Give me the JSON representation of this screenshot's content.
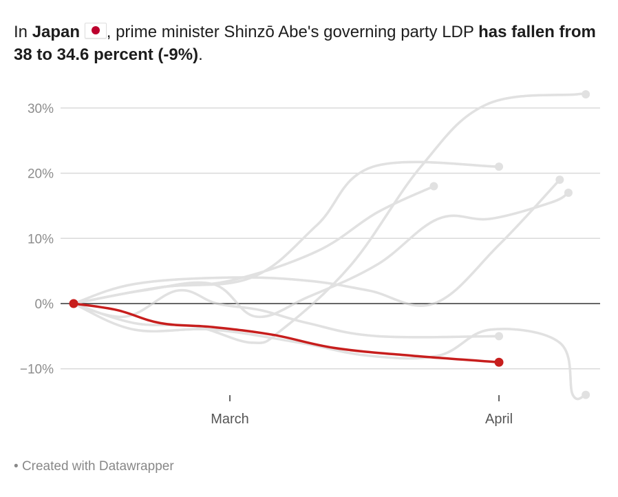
{
  "headline": {
    "part1": "In ",
    "country": "Japan",
    "flag_icon": "japan-flag-icon",
    "part2": ", prime minister Shinzō Abe's governing party LDP ",
    "bold_tail": "has fallen from 38 to 34.6 percent (-9%)",
    "end": "."
  },
  "footer": {
    "bullet": "•",
    "text": "Created with Datawrapper"
  },
  "chart_data": {
    "type": "line",
    "title": "In Japan, prime minister Shinzō Abe's governing party LDP has fallen from 38 to 34.6 percent (-9%).",
    "xlabel": "",
    "ylabel": "",
    "x_unit": "days since first poll",
    "x_ticks": [
      {
        "label": "March",
        "x": 18
      },
      {
        "label": "April",
        "x": 49
      }
    ],
    "y_ticks": [
      {
        "label": "30%",
        "value": 30
      },
      {
        "label": "20%",
        "value": 20
      },
      {
        "label": "10%",
        "value": 10
      },
      {
        "label": "0%",
        "value": 0
      },
      {
        "label": "−10%",
        "value": -10
      }
    ],
    "xlim": [
      0,
      60
    ],
    "ylim": [
      -15,
      33
    ],
    "grid": true,
    "baseline": 0,
    "colors": {
      "highlight": "#c71e1d",
      "context": "#e1e1e1",
      "grid": "#d9d9d9",
      "baseline": "#333333"
    },
    "series": [
      {
        "name": "context-a",
        "highlight": false,
        "points": [
          [
            0,
            0
          ],
          [
            7,
            -3
          ],
          [
            14,
            -3.5
          ],
          [
            20.5,
            -6
          ],
          [
            24,
            -4
          ],
          [
            32,
            6
          ],
          [
            40,
            21
          ],
          [
            47.5,
            30.5
          ],
          [
            58,
            32.1
          ],
          [
            59,
            32.1
          ]
        ]
      },
      {
        "name": "context-b",
        "highlight": false,
        "points": [
          [
            0,
            0
          ],
          [
            10,
            2.5
          ],
          [
            20.5,
            4
          ],
          [
            28,
            12
          ],
          [
            34.5,
            21
          ],
          [
            49,
            21
          ]
        ]
      },
      {
        "name": "context-c",
        "highlight": false,
        "points": [
          [
            0,
            0
          ],
          [
            10,
            2.5
          ],
          [
            18,
            3.5
          ],
          [
            28,
            8
          ],
          [
            35,
            14
          ],
          [
            41.5,
            18
          ]
        ]
      },
      {
        "name": "context-d",
        "highlight": false,
        "points": [
          [
            0,
            0
          ],
          [
            7,
            3
          ],
          [
            18,
            4
          ],
          [
            27,
            3.5
          ],
          [
            34,
            2
          ],
          [
            41.5,
            0
          ],
          [
            49,
            9
          ],
          [
            56,
            19
          ]
        ]
      },
      {
        "name": "context-e",
        "highlight": false,
        "points": [
          [
            0,
            0
          ],
          [
            8,
            2
          ],
          [
            16,
            3
          ],
          [
            21,
            -2
          ],
          [
            27,
            1
          ],
          [
            35,
            6
          ],
          [
            42,
            13
          ],
          [
            48,
            13
          ],
          [
            55,
            15.5
          ],
          [
            57,
            17
          ]
        ]
      },
      {
        "name": "context-f",
        "highlight": false,
        "points": [
          [
            0,
            0
          ],
          [
            6,
            -2
          ],
          [
            12,
            2
          ],
          [
            16.5,
            0
          ],
          [
            21.5,
            -1
          ],
          [
            27,
            -3
          ],
          [
            35,
            -5
          ],
          [
            49,
            -5
          ]
        ]
      },
      {
        "name": "context-g",
        "highlight": false,
        "points": [
          [
            0,
            0
          ],
          [
            7,
            -4
          ],
          [
            16,
            -4
          ],
          [
            26,
            -6
          ],
          [
            34,
            -8
          ],
          [
            42,
            -8
          ],
          [
            48,
            -4
          ],
          [
            56,
            -6
          ],
          [
            57.5,
            -14
          ],
          [
            59,
            -14
          ]
        ]
      },
      {
        "name": "Japan LDP",
        "highlight": true,
        "points": [
          [
            0,
            0
          ],
          [
            5,
            -1
          ],
          [
            10,
            -3
          ],
          [
            16,
            -3.6
          ],
          [
            23,
            -4.8
          ],
          [
            30,
            -6.8
          ],
          [
            39,
            -8
          ],
          [
            49,
            -9
          ]
        ]
      }
    ]
  }
}
